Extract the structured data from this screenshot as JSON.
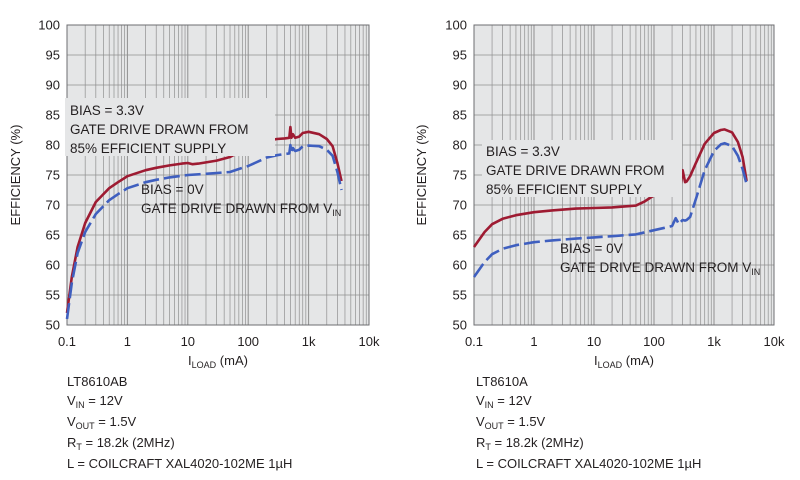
{
  "colors": {
    "background": "#ffffff",
    "plot_background": "#e5e6e7",
    "grid": "#8f8f8f",
    "bias_3v3_line": "#9e1b32",
    "bias_0v_line": "#3f5fbf",
    "text": "#231f20"
  },
  "chart_data": [
    {
      "type": "line",
      "xscale": "log",
      "xlim": [
        0.1,
        10000
      ],
      "ylim": [
        50,
        100
      ],
      "xticks": [
        "0.1",
        "1",
        "10",
        "100",
        "1k",
        "10k"
      ],
      "yticks": [
        "50",
        "55",
        "60",
        "65",
        "70",
        "75",
        "80",
        "85",
        "90",
        "95",
        "100"
      ],
      "ylabel": "EFFICIENCY (%)",
      "xlabel": {
        "main": "I",
        "sub": "LOAD",
        "rest": " (mA)"
      },
      "series": [
        {
          "name": "BIAS = 3.3V, GATE DRIVE DRAWN FROM 85% EFFICIENT SUPPLY",
          "style": "solid",
          "x": [
            0.1,
            0.12,
            0.15,
            0.2,
            0.3,
            0.5,
            0.7,
            1,
            2,
            3,
            5,
            8,
            10,
            12,
            15,
            20,
            30,
            50,
            70,
            100,
            150,
            200,
            300,
            400,
            480,
            500,
            520,
            550,
            600,
            700,
            800,
            1000,
            1500,
            2000,
            2500,
            3000,
            3500
          ],
          "y": [
            52,
            58,
            63,
            67,
            70.5,
            72.8,
            73.8,
            74.8,
            75.8,
            76.2,
            76.6,
            76.9,
            77,
            76.8,
            76.9,
            77.1,
            77.4,
            78,
            78.8,
            79.5,
            80.2,
            80.7,
            81,
            81.1,
            81.2,
            83,
            81.2,
            81.8,
            81.2,
            81.4,
            82,
            82.2,
            81.8,
            81,
            79.8,
            77,
            74
          ]
        },
        {
          "name": "BIAS = 0V, GATE DRIVE DRAWN FROM VIN",
          "style": "dashed",
          "x": [
            0.1,
            0.12,
            0.15,
            0.2,
            0.3,
            0.5,
            0.7,
            1,
            2,
            3,
            5,
            10,
            20,
            50,
            70,
            100,
            150,
            200,
            300,
            400,
            480,
            500,
            520,
            550,
            600,
            700,
            800,
            1000,
            1500,
            2000,
            2500,
            3000,
            3500
          ],
          "y": [
            51,
            57,
            62,
            65.5,
            68.5,
            70.8,
            71.8,
            72.8,
            73.8,
            74.2,
            74.6,
            75,
            75.2,
            75.5,
            76,
            76.5,
            77.3,
            77.9,
            78.3,
            78.5,
            78.6,
            80,
            78.7,
            79.5,
            79,
            79.2,
            79.8,
            79.9,
            79.8,
            79.2,
            78.2,
            75.5,
            72.5
          ]
        }
      ],
      "annotations": {
        "bias_3v3": [
          "BIAS = 3.3V",
          "GATE DRIVE DRAWN FROM",
          "85% EFFICIENT SUPPLY"
        ],
        "bias_0v": [
          "BIAS = 0V",
          "GATE DRIVE DRAWN FROM V",
          "IN"
        ]
      },
      "conditions": {
        "part": "LT8610AB",
        "vin": {
          "main": "V",
          "sub": "IN",
          "rest": " = 12V"
        },
        "vout": {
          "main": "V",
          "sub": "OUT",
          "rest": " = 1.5V"
        },
        "rt": {
          "main": "R",
          "sub": "T",
          "rest": " = 18.2k (2MHz)"
        },
        "l": "L = COILCRAFT XAL4020-102ME 1µH"
      }
    },
    {
      "type": "line",
      "xscale": "log",
      "xlim": [
        0.1,
        10000
      ],
      "ylim": [
        50,
        100
      ],
      "xticks": [
        "0.1",
        "1",
        "10",
        "100",
        "1k",
        "10k"
      ],
      "yticks": [
        "50",
        "55",
        "60",
        "65",
        "70",
        "75",
        "80",
        "85",
        "90",
        "95",
        "100"
      ],
      "ylabel": "EFFICIENCY (%)",
      "xlabel": {
        "main": "I",
        "sub": "LOAD",
        "rest": " (mA)"
      },
      "series": [
        {
          "name": "BIAS = 3.3V, GATE DRIVE DRAWN FROM 85% EFFICIENT SUPPLY",
          "style": "solid",
          "x": [
            0.1,
            0.15,
            0.2,
            0.3,
            0.5,
            1,
            2,
            5,
            10,
            20,
            50,
            70,
            100,
            150,
            200,
            250,
            280,
            300,
            330,
            350,
            400,
            500,
            700,
            1000,
            1300,
            1500,
            2000,
            2500,
            3000,
            3500
          ],
          "y": [
            63,
            65.5,
            66.8,
            67.7,
            68.3,
            68.8,
            69.1,
            69.4,
            69.5,
            69.6,
            69.9,
            70.6,
            71.6,
            72.8,
            73.8,
            74.2,
            73.6,
            75.8,
            73.8,
            73.9,
            74.8,
            77,
            80.2,
            82,
            82.5,
            82.6,
            82.1,
            80.5,
            78,
            74
          ]
        },
        {
          "name": "BIAS = 0V, GATE DRIVE DRAWN FROM VIN",
          "style": "dashed",
          "x": [
            0.1,
            0.15,
            0.2,
            0.3,
            0.5,
            1,
            2,
            5,
            10,
            20,
            50,
            100,
            150,
            200,
            230,
            260,
            280,
            300,
            330,
            350,
            400,
            500,
            700,
            1000,
            1300,
            1500,
            2000,
            2500,
            3000,
            3500
          ],
          "y": [
            58,
            60.5,
            61.8,
            62.7,
            63.3,
            63.8,
            64.1,
            64.4,
            64.6,
            64.8,
            65.1,
            65.8,
            66.2,
            66.5,
            67.8,
            66.8,
            67.2,
            67.5,
            67.4,
            67.5,
            68,
            71,
            75.8,
            79,
            80.1,
            80.3,
            79.8,
            78.2,
            76,
            73.5
          ]
        }
      ],
      "annotations": {
        "bias_3v3": [
          "BIAS = 3.3V",
          "GATE DRIVE DRAWN FROM",
          "85% EFFICIENT SUPPLY"
        ],
        "bias_0v": [
          "BIAS = 0V",
          "GATE DRIVE DRAWN FROM V",
          "IN"
        ]
      },
      "conditions": {
        "part": "LT8610A",
        "vin": {
          "main": "V",
          "sub": "IN",
          "rest": " = 12V"
        },
        "vout": {
          "main": "V",
          "sub": "OUT",
          "rest": " = 1.5V"
        },
        "rt": {
          "main": "R",
          "sub": "T",
          "rest": " = 18.2k (2MHz)"
        },
        "l": "L = COILCRAFT XAL4020-102ME 1µH"
      }
    }
  ]
}
